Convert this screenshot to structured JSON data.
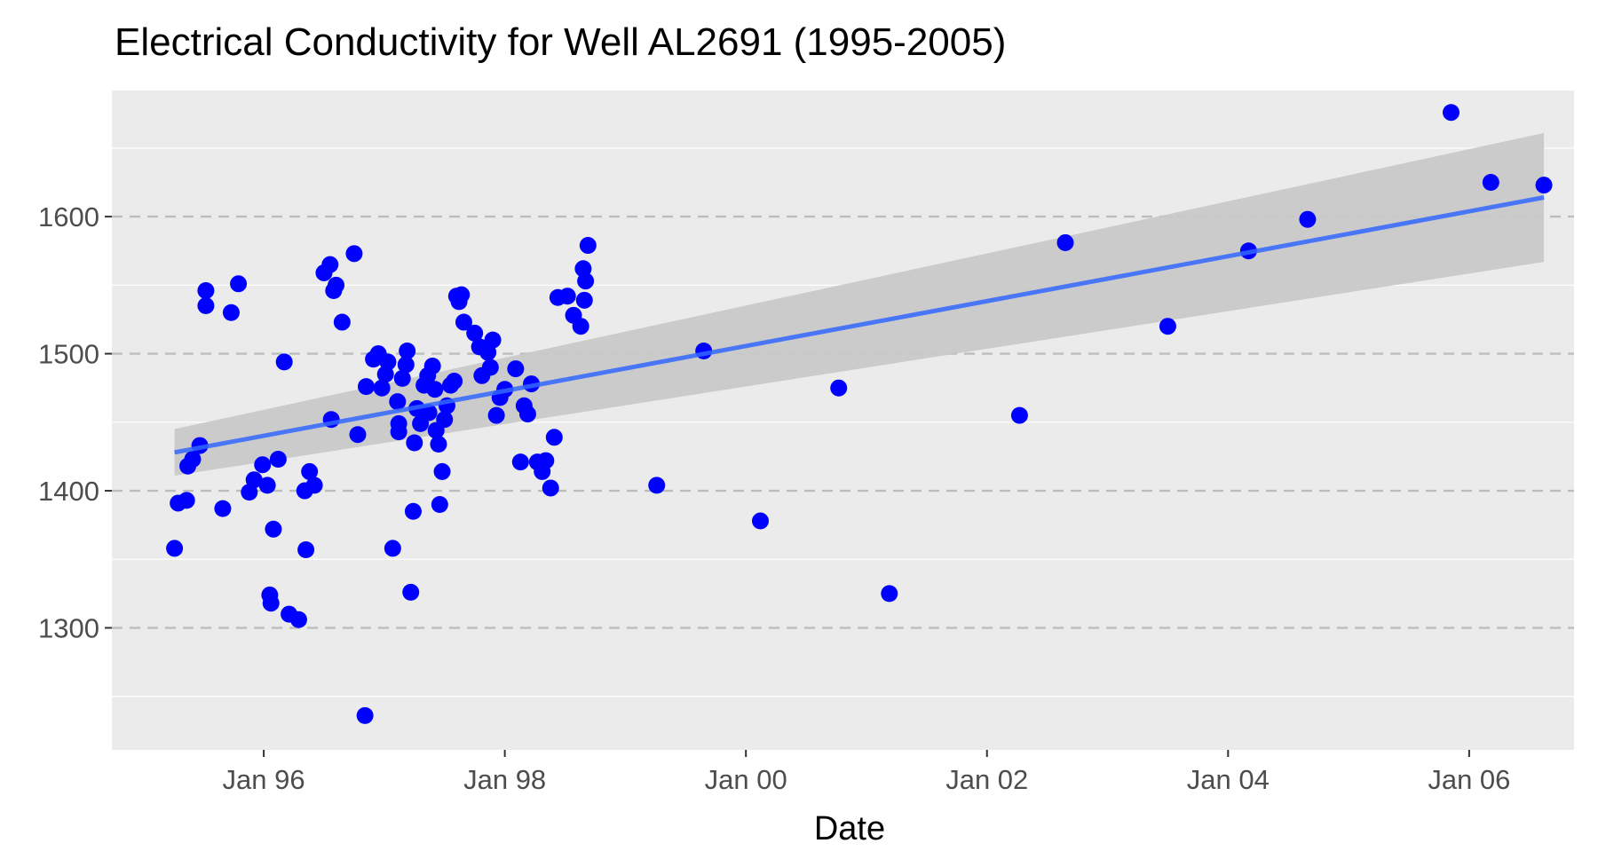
{
  "chart_data": {
    "type": "scatter",
    "title": "Electrical Conductivity for Well AL2691 (1995-2005)",
    "xlabel": "Date",
    "ylabel": "",
    "x_ticks": [
      {
        "value": 1996.0,
        "label": "Jan 96"
      },
      {
        "value": 1998.0,
        "label": "Jan 98"
      },
      {
        "value": 2000.0,
        "label": "Jan 00"
      },
      {
        "value": 2002.0,
        "label": "Jan 02"
      },
      {
        "value": 2004.0,
        "label": "Jan 04"
      },
      {
        "value": 2006.0,
        "label": "Jan 06"
      }
    ],
    "y_ticks": [
      1300,
      1400,
      1500,
      1600
    ],
    "xlim": [
      1994.74,
      2006.87
    ],
    "ylim": [
      1211,
      1692
    ],
    "grid": true,
    "legend": "none",
    "colors": {
      "points": "#0000ff",
      "trend": "#3366ff",
      "band": "#c8c8c8",
      "panel": "#ebebeb",
      "grid": "#ffffff",
      "dashed": "#bdbdbd"
    },
    "points": [
      {
        "x": 1995.26,
        "y": 1358
      },
      {
        "x": 1995.29,
        "y": 1391
      },
      {
        "x": 1995.36,
        "y": 1393
      },
      {
        "x": 1995.37,
        "y": 1418
      },
      {
        "x": 1995.41,
        "y": 1423
      },
      {
        "x": 1995.47,
        "y": 1433
      },
      {
        "x": 1995.52,
        "y": 1546
      },
      {
        "x": 1995.52,
        "y": 1535
      },
      {
        "x": 1995.66,
        "y": 1387
      },
      {
        "x": 1995.73,
        "y": 1530
      },
      {
        "x": 1995.79,
        "y": 1551
      },
      {
        "x": 1995.88,
        "y": 1399
      },
      {
        "x": 1995.92,
        "y": 1408
      },
      {
        "x": 1995.99,
        "y": 1419
      },
      {
        "x": 1996.03,
        "y": 1404
      },
      {
        "x": 1996.05,
        "y": 1324
      },
      {
        "x": 1996.06,
        "y": 1318
      },
      {
        "x": 1996.08,
        "y": 1372
      },
      {
        "x": 1996.12,
        "y": 1423
      },
      {
        "x": 1996.17,
        "y": 1494
      },
      {
        "x": 1996.21,
        "y": 1310
      },
      {
        "x": 1996.29,
        "y": 1306
      },
      {
        "x": 1996.34,
        "y": 1400
      },
      {
        "x": 1996.35,
        "y": 1357
      },
      {
        "x": 1996.38,
        "y": 1414
      },
      {
        "x": 1996.42,
        "y": 1404
      },
      {
        "x": 1996.5,
        "y": 1559
      },
      {
        "x": 1996.55,
        "y": 1565
      },
      {
        "x": 1996.56,
        "y": 1452
      },
      {
        "x": 1996.58,
        "y": 1546
      },
      {
        "x": 1996.6,
        "y": 1550
      },
      {
        "x": 1996.65,
        "y": 1523
      },
      {
        "x": 1996.75,
        "y": 1573
      },
      {
        "x": 1996.78,
        "y": 1441
      },
      {
        "x": 1996.84,
        "y": 1236
      },
      {
        "x": 1996.85,
        "y": 1476
      },
      {
        "x": 1996.91,
        "y": 1496
      },
      {
        "x": 1996.95,
        "y": 1500
      },
      {
        "x": 1996.98,
        "y": 1475
      },
      {
        "x": 1997.01,
        "y": 1485
      },
      {
        "x": 1997.03,
        "y": 1494
      },
      {
        "x": 1997.07,
        "y": 1358
      },
      {
        "x": 1997.11,
        "y": 1465
      },
      {
        "x": 1997.12,
        "y": 1449
      },
      {
        "x": 1997.12,
        "y": 1443
      },
      {
        "x": 1997.15,
        "y": 1482
      },
      {
        "x": 1997.18,
        "y": 1492
      },
      {
        "x": 1997.19,
        "y": 1502
      },
      {
        "x": 1997.22,
        "y": 1326
      },
      {
        "x": 1997.24,
        "y": 1385
      },
      {
        "x": 1997.25,
        "y": 1435
      },
      {
        "x": 1997.27,
        "y": 1460
      },
      {
        "x": 1997.3,
        "y": 1449
      },
      {
        "x": 1997.33,
        "y": 1477
      },
      {
        "x": 1997.36,
        "y": 1484
      },
      {
        "x": 1997.37,
        "y": 1457
      },
      {
        "x": 1997.4,
        "y": 1491
      },
      {
        "x": 1997.42,
        "y": 1474
      },
      {
        "x": 1997.43,
        "y": 1444
      },
      {
        "x": 1997.45,
        "y": 1434
      },
      {
        "x": 1997.46,
        "y": 1390
      },
      {
        "x": 1997.48,
        "y": 1414
      },
      {
        "x": 1997.5,
        "y": 1452
      },
      {
        "x": 1997.52,
        "y": 1462
      },
      {
        "x": 1997.55,
        "y": 1477
      },
      {
        "x": 1997.58,
        "y": 1480
      },
      {
        "x": 1997.6,
        "y": 1542
      },
      {
        "x": 1997.62,
        "y": 1538
      },
      {
        "x": 1997.64,
        "y": 1543
      },
      {
        "x": 1997.66,
        "y": 1523
      },
      {
        "x": 1997.75,
        "y": 1515
      },
      {
        "x": 1997.79,
        "y": 1505
      },
      {
        "x": 1997.81,
        "y": 1484
      },
      {
        "x": 1997.86,
        "y": 1501
      },
      {
        "x": 1997.88,
        "y": 1490
      },
      {
        "x": 1997.9,
        "y": 1510
      },
      {
        "x": 1997.93,
        "y": 1455
      },
      {
        "x": 1997.96,
        "y": 1468
      },
      {
        "x": 1998.0,
        "y": 1474
      },
      {
        "x": 1998.09,
        "y": 1489
      },
      {
        "x": 1998.13,
        "y": 1421
      },
      {
        "x": 1998.16,
        "y": 1462
      },
      {
        "x": 1998.19,
        "y": 1456
      },
      {
        "x": 1998.22,
        "y": 1478
      },
      {
        "x": 1998.27,
        "y": 1421
      },
      {
        "x": 1998.31,
        "y": 1414
      },
      {
        "x": 1998.34,
        "y": 1422
      },
      {
        "x": 1998.38,
        "y": 1402
      },
      {
        "x": 1998.41,
        "y": 1439
      },
      {
        "x": 1998.44,
        "y": 1541
      },
      {
        "x": 1998.52,
        "y": 1542
      },
      {
        "x": 1998.57,
        "y": 1528
      },
      {
        "x": 1998.63,
        "y": 1520
      },
      {
        "x": 1998.65,
        "y": 1562
      },
      {
        "x": 1998.66,
        "y": 1539
      },
      {
        "x": 1998.67,
        "y": 1553
      },
      {
        "x": 1998.69,
        "y": 1579
      },
      {
        "x": 1999.26,
        "y": 1404
      },
      {
        "x": 1999.65,
        "y": 1502
      },
      {
        "x": 2000.12,
        "y": 1378
      },
      {
        "x": 2000.77,
        "y": 1475
      },
      {
        "x": 2001.19,
        "y": 1325
      },
      {
        "x": 2002.27,
        "y": 1455
      },
      {
        "x": 2002.65,
        "y": 1581
      },
      {
        "x": 2003.5,
        "y": 1520
      },
      {
        "x": 2004.17,
        "y": 1575
      },
      {
        "x": 2004.66,
        "y": 1598
      },
      {
        "x": 2005.85,
        "y": 1676
      },
      {
        "x": 2006.18,
        "y": 1625
      },
      {
        "x": 2006.62,
        "y": 1623
      }
    ],
    "trend": {
      "x": [
        1995.26,
        2006.62
      ],
      "y": [
        1428,
        1614
      ]
    },
    "band": {
      "x": [
        1995.26,
        2006.62
      ],
      "lower": [
        1411,
        1567
      ],
      "upper": [
        1445,
        1661
      ]
    }
  }
}
